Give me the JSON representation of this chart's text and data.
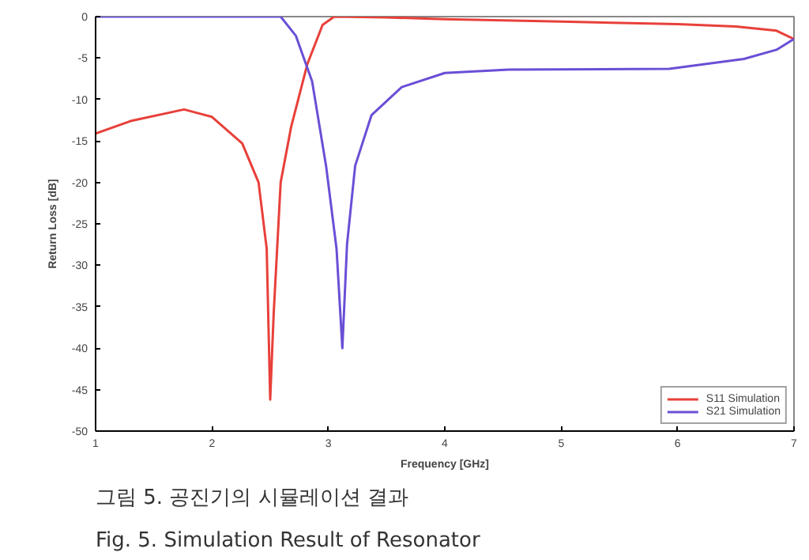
{
  "chart_data": {
    "type": "line",
    "xlabel": "Frequency [GHz]",
    "ylabel": "Return Loss [dB]",
    "xlim": [
      1,
      7
    ],
    "ylim": [
      -50,
      0
    ],
    "xticks": [
      1,
      2,
      3,
      4,
      5,
      6,
      7
    ],
    "yticks": [
      -50,
      -45,
      -40,
      -35,
      -30,
      -25,
      -20,
      -15,
      -10,
      -5,
      0
    ],
    "grid": false,
    "legend": "bottom right",
    "line_style": "solid",
    "marker": "none",
    "series": [
      {
        "name": "S11 Simulation",
        "color": "#e8403a",
        "x": [
          1,
          1.3,
          1.76,
          2.0,
          2.26,
          2.4,
          2.47,
          2.5,
          2.53,
          2.59,
          2.68,
          2.82,
          2.95,
          3.05,
          3.5,
          4,
          5,
          6,
          6.5,
          6.85,
          7
        ],
        "values": [
          -14.1,
          -12.6,
          -11.2,
          -12.1,
          -15.3,
          -20,
          -28,
          -46.2,
          -35.8,
          -20,
          -13.3,
          -5.7,
          -1,
          0,
          -0.1,
          -0.3,
          -0.6,
          -0.9,
          -1.2,
          -1.7,
          -2.7
        ]
      },
      {
        "name": "S21 Simulation",
        "color": "#6a4fd6",
        "x": [
          1,
          2.0,
          2.5,
          2.59,
          2.72,
          2.86,
          2.98,
          3.07,
          3.12,
          3.16,
          3.23,
          3.37,
          3.63,
          4,
          4.55,
          5.93,
          6.57,
          6.85,
          7
        ],
        "values": [
          0,
          0,
          0,
          0,
          -2.3,
          -7.8,
          -18,
          -28,
          -40,
          -27.5,
          -18,
          -11.9,
          -8.5,
          -6.8,
          -6.4,
          -6.3,
          -5.1,
          -4,
          -2.7
        ]
      }
    ],
    "annotations": [
      "그림 5.  공진기의 시뮬레이션 결과",
      "Fig. 5.  Simulation Result of Resonator"
    ]
  }
}
